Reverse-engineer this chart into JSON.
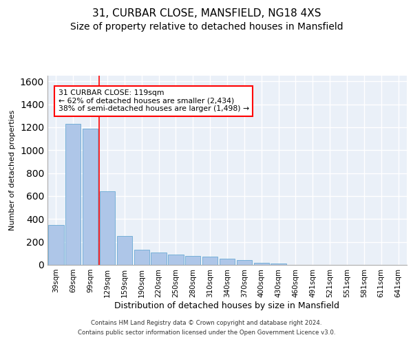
{
  "title1": "31, CURBAR CLOSE, MANSFIELD, NG18 4XS",
  "title2": "Size of property relative to detached houses in Mansfield",
  "xlabel": "Distribution of detached houses by size in Mansfield",
  "ylabel": "Number of detached properties",
  "categories": [
    "39sqm",
    "69sqm",
    "99sqm",
    "129sqm",
    "159sqm",
    "190sqm",
    "220sqm",
    "250sqm",
    "280sqm",
    "310sqm",
    "340sqm",
    "370sqm",
    "400sqm",
    "430sqm",
    "460sqm",
    "491sqm",
    "521sqm",
    "551sqm",
    "581sqm",
    "611sqm",
    "641sqm"
  ],
  "values": [
    350,
    1230,
    1190,
    640,
    250,
    130,
    110,
    90,
    80,
    70,
    55,
    45,
    20,
    10,
    0,
    0,
    0,
    0,
    0,
    0,
    0
  ],
  "bar_color": "#aec6e8",
  "bar_edge_color": "#6aaad4",
  "red_line_x": 2.5,
  "annotation_text": "31 CURBAR CLOSE: 119sqm\n← 62% of detached houses are smaller (2,434)\n38% of semi-detached houses are larger (1,498) →",
  "ylim": [
    0,
    1650
  ],
  "yticks": [
    0,
    200,
    400,
    600,
    800,
    1000,
    1200,
    1400,
    1600
  ],
  "footer1": "Contains HM Land Registry data © Crown copyright and database right 2024.",
  "footer2": "Contains public sector information licensed under the Open Government Licence v3.0.",
  "bg_color": "#eaf0f8",
  "grid_color": "#ffffff",
  "title_fontsize": 11,
  "subtitle_fontsize": 10,
  "ylabel_fontsize": 8,
  "xlabel_fontsize": 9
}
